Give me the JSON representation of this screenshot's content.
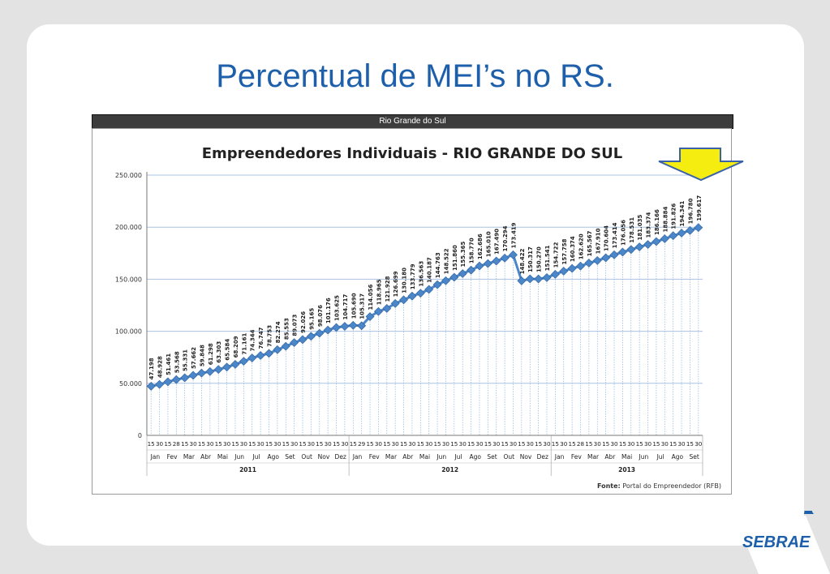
{
  "slide": {
    "title": "Percentual de MEI’s no RS.",
    "logo_text": "SEBRAE"
  },
  "header": {
    "label": "Rio Grande do Sul"
  },
  "chart_data": {
    "type": "line",
    "title": "Empreendedores Individuais - RIO GRANDE DO SUL",
    "source_label": "Fonte:",
    "source_text": "Portal do Empreendedor (RFB)",
    "ylim": [
      0,
      250000
    ],
    "yticks": [
      "0",
      "50.000",
      "100.000",
      "150.000",
      "200.000",
      "250.000"
    ],
    "grid": true,
    "legend": "none",
    "series_color": "#4a86c8",
    "x_day_labels": [
      "15",
      "30",
      "15",
      "28",
      "15",
      "30",
      "15",
      "30",
      "15",
      "30",
      "15",
      "30",
      "15",
      "30",
      "15",
      "30",
      "15",
      "30",
      "15",
      "30",
      "15",
      "30",
      "15",
      "30",
      "15",
      "29",
      "15",
      "30",
      "15",
      "30",
      "15",
      "30",
      "15",
      "30",
      "15",
      "30",
      "15",
      "30",
      "15",
      "30",
      "15",
      "30",
      "15",
      "30",
      "15",
      "30",
      "15",
      "30",
      "15",
      "30",
      "15",
      "28",
      "15",
      "30",
      "15",
      "30",
      "15",
      "30",
      "15",
      "30",
      "15",
      "30",
      "15",
      "30",
      "15",
      "30"
    ],
    "months": [
      "Jan",
      "Fev",
      "Mar",
      "Abr",
      "Mai",
      "Jun",
      "Jul",
      "Ago",
      "Set",
      "Out",
      "Nov",
      "Dez",
      "Jan",
      "Fev",
      "Mar",
      "Abr",
      "Mai",
      "Jun",
      "Jul",
      "Ago",
      "Set",
      "Out",
      "Nov",
      "Dez",
      "Jan",
      "Fev",
      "Mar",
      "Abr",
      "Mai",
      "Jun",
      "Jul",
      "Ago",
      "Set"
    ],
    "years": [
      {
        "label": "2011",
        "months": 12
      },
      {
        "label": "2012",
        "months": 12
      },
      {
        "label": "2013",
        "months": 9
      }
    ],
    "values": [
      47198,
      48928,
      51461,
      53568,
      55331,
      57662,
      59848,
      61298,
      63303,
      65584,
      68209,
      71161,
      74344,
      76747,
      78753,
      82274,
      85553,
      89073,
      92026,
      95165,
      98076,
      101176,
      103625,
      104717,
      105690,
      105317,
      114056,
      118965,
      121928,
      126699,
      130180,
      133779,
      136563,
      140187,
      144763,
      148522,
      151860,
      155365,
      158770,
      162686,
      165010,
      167490,
      170294,
      173419,
      148422,
      150317,
      150270,
      151541,
      154722,
      157758,
      160374,
      162620,
      165567,
      167910,
      170604,
      173414,
      176056,
      178531,
      181035,
      183374,
      186166,
      188884,
      191826,
      194341,
      196780,
      199617
    ],
    "value_labels": [
      "47.198",
      "48.928",
      "51.461",
      "53.568",
      "55.331",
      "57.662",
      "59.848",
      "61.298",
      "63.303",
      "65.584",
      "68.209",
      "71.161",
      "74.344",
      "76.747",
      "78.753",
      "82.274",
      "85.553",
      "89.073",
      "92.026",
      "95.165",
      "98.076",
      "101.176",
      "103.625",
      "104.717",
      "105.690",
      "105.317",
      "114.056",
      "118.965",
      "121.928",
      "126.699",
      "130.180",
      "133.779",
      "136.563",
      "140.187",
      "144.763",
      "148.522",
      "151.860",
      "155.365",
      "158.770",
      "162.686",
      "165.010",
      "167.490",
      "170.294",
      "173.419",
      "148.422",
      "150.317",
      "150.270",
      "151.541",
      "154.722",
      "157.758",
      "160.374",
      "162.620",
      "165.567",
      "167.910",
      "170.604",
      "173.414",
      "176.056",
      "178.531",
      "181.035",
      "183.374",
      "186.166",
      "188.884",
      "191.826",
      "194.341",
      "196.780",
      "199.617"
    ]
  },
  "annotation": {
    "arrow_color": "#f5ec10",
    "arrow_stroke": "#3a62a8"
  }
}
